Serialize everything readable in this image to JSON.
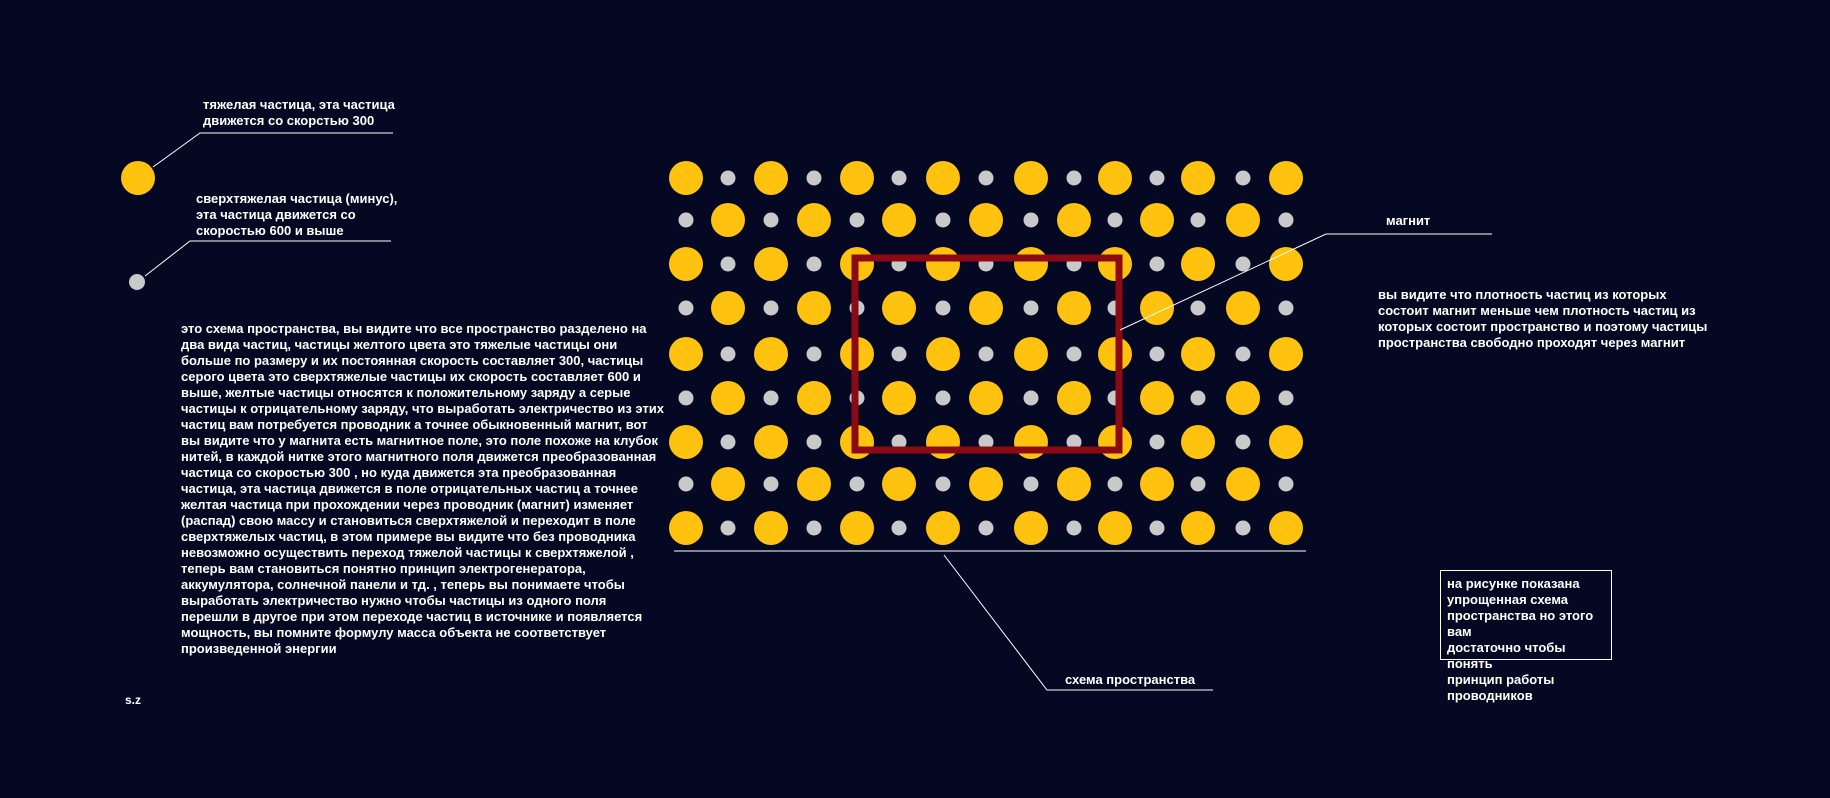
{
  "labels": {
    "heavy_particle": "тяжелая частица, эта частица\nдвижется со скорстью 300",
    "superheavy_particle": "сверхтяжелая  частица (минус),\nэта частица движется со\nскоростью 600 и выше",
    "magnet": "магнит",
    "scheme": "схема пространства",
    "signature": "s.z"
  },
  "main_text": "это схема пространства, вы видите что все пространство разделено на два вида частиц, частицы желтого цвета это тяжелые частицы они больше по размеру и их постоянная скорость составляет 300, частицы серого цвета это сверхтяжелые частицы  их скорость составляет 600 и выше, желтые частицы относятся к положительному заряду а серые частицы к отрицательному заряду, что выработать электричество из этих частиц вам потребуется проводник а точнее обыкновенный магнит, вот вы видите что у магнита есть магнитное поле, это поле похоже на клубок нитей, в каждой нитке этого магнитного поля движется преобразованная частица со скоростью 300 , но куда движется эта преобразованная частица, эта частица движется в поле отрицательных частиц а точнее желтая частица при прохождении через проводник (магнит) изменяет (распад) свою массу и становиться сверхтяжелой и переходит в поле сверхтяжелых частиц, в этом примере вы видите что без проводника невозможно осуществить переход тяжелой частицы к сверхтяжелой , теперь вам становиться понятно принцип электрогенератора, аккумулятора, солнечной панели и тд. , теперь вы понимаете чтобы выработать электричество нужно чтобы частицы из одного поля перешли в другое при этом переходе частиц в источнике и появляется мощность, вы помните формулу масса объекта не соответствует произведенной энергии",
  "magnet_description": "вы видите что плотность частиц из которых\nсостоит магнит меньше чем плотность частиц из\nкоторых состоит пространство и поэтому частицы\nпространства свободно проходят через магнит",
  "caption_box": "на рисунке показана\nупрощенная схема\nпространства но этого вам\nдостаточно чтобы понять\nпринцип работы проводников",
  "colors": {
    "background": "#050822",
    "heavy_particle": "#ffc20e",
    "superheavy_particle": "#c9c9c9",
    "magnet_frame": "#8b0a14",
    "lines": "#ffffff"
  },
  "grid": {
    "rows": 9,
    "row_pattern": [
      "yellow-gray",
      "gray-yellow",
      "yellow-gray",
      "gray-yellow",
      "yellow-gray",
      "gray-yellow",
      "yellow-gray",
      "gray-yellow",
      "yellow-gray"
    ],
    "yellow_per_row": 8,
    "gray_per_row": 7
  }
}
